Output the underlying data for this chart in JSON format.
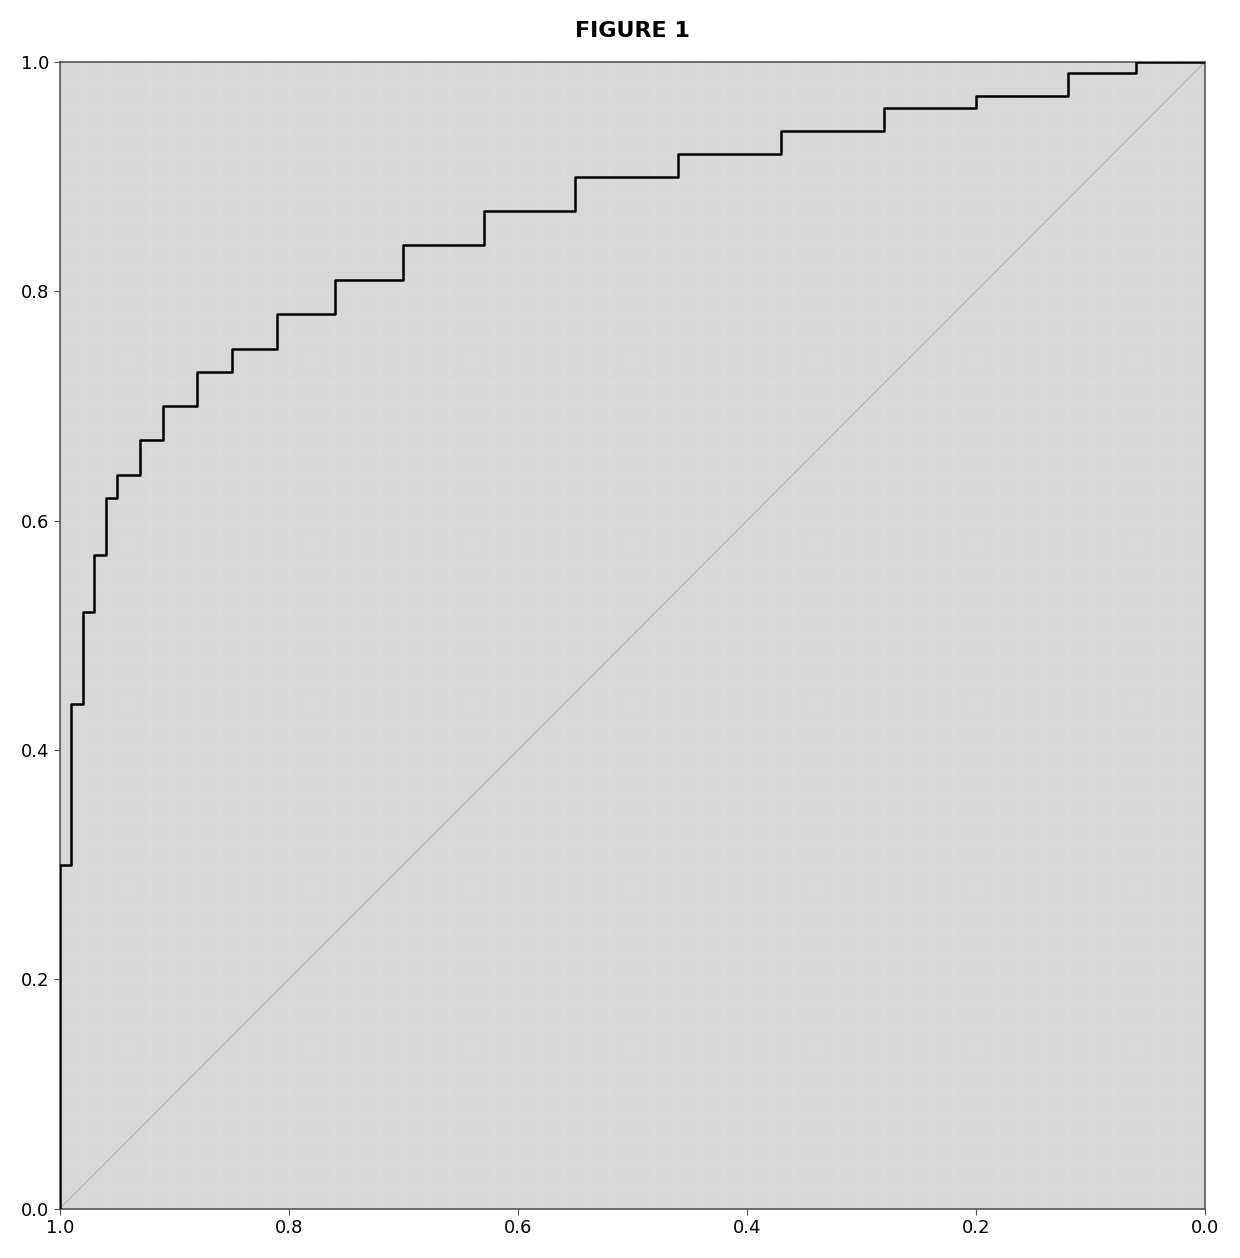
{
  "title": "FIGURE 1",
  "title_fontsize": 16,
  "title_fontweight": "bold",
  "background_color": "#ffffff",
  "plot_bg_color": "#d8d8d8",
  "xlim": [
    0.0,
    1.0
  ],
  "ylim": [
    0.0,
    1.0
  ],
  "xticks": [
    0.0,
    0.2,
    0.4,
    0.6,
    0.8,
    1.0
  ],
  "yticks": [
    0.0,
    0.2,
    0.4,
    0.6,
    0.8,
    1.0
  ],
  "roc_x": [
    0.0,
    0.0,
    0.01,
    0.01,
    0.02,
    0.02,
    0.03,
    0.03,
    0.04,
    0.04,
    0.05,
    0.05,
    0.07,
    0.07,
    0.09,
    0.09,
    0.12,
    0.12,
    0.15,
    0.15,
    0.19,
    0.19,
    0.24,
    0.24,
    0.3,
    0.3,
    0.37,
    0.37,
    0.45,
    0.45,
    0.54,
    0.54,
    0.63,
    0.63,
    0.72,
    0.72,
    0.8,
    0.8,
    0.88,
    0.88,
    0.94,
    0.94,
    1.0
  ],
  "roc_y": [
    0.0,
    0.3,
    0.3,
    0.44,
    0.44,
    0.52,
    0.52,
    0.57,
    0.57,
    0.62,
    0.62,
    0.64,
    0.64,
    0.67,
    0.67,
    0.7,
    0.7,
    0.73,
    0.73,
    0.75,
    0.75,
    0.78,
    0.78,
    0.81,
    0.81,
    0.84,
    0.84,
    0.87,
    0.87,
    0.9,
    0.9,
    0.92,
    0.92,
    0.94,
    0.94,
    0.96,
    0.96,
    0.97,
    0.97,
    0.99,
    0.99,
    1.0,
    1.0
  ],
  "roc_color": "#000000",
  "roc_linewidth": 1.8,
  "diag_color": "#b0b0b0",
  "diag_linewidth": 0.8,
  "tick_fontsize": 13,
  "spine_color": "#555555",
  "grid_dot_color": "#ffffff",
  "grid_dot_alpha": 0.9
}
